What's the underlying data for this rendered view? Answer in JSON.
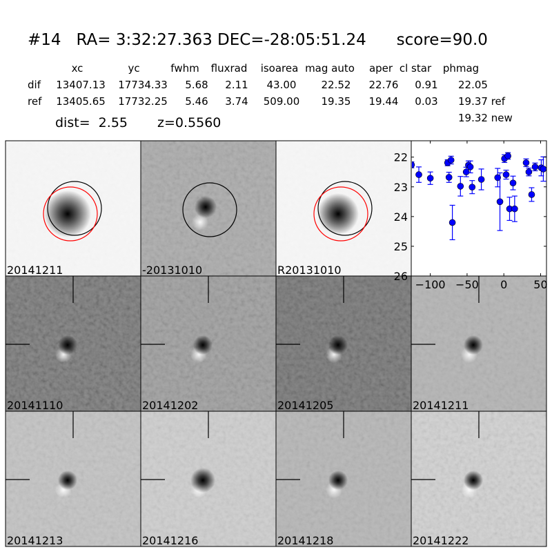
{
  "title": "#14   RA= 3:32:27.363 DEC=-28:05:51.24      score=90.0",
  "table": {
    "headers": [
      "xc",
      "yc",
      "fwhm",
      "fluxrad",
      "isoarea",
      "mag auto",
      "aper",
      "cl star",
      "phmag"
    ],
    "rows": [
      {
        "label": "dif",
        "values": [
          "13407.13",
          "17734.33",
          "5.68",
          "2.11",
          "43.00",
          "22.52",
          "22.76",
          "0.91",
          "22.05"
        ]
      },
      {
        "label": "ref",
        "values": [
          "13405.65",
          "17732.25",
          "5.46",
          "3.74",
          "509.00",
          "19.35",
          "19.44",
          "0.03",
          "19.37 ref"
        ]
      }
    ],
    "extra_phmag": "19.32 new",
    "dist": "dist=  2.55",
    "z": "z=0.5560"
  },
  "panels": [
    {
      "label": "20141211",
      "color": "#000000"
    },
    {
      "label": "-20131010",
      "color": "#000000"
    },
    {
      "label": "R20131010",
      "color": "#000000"
    },
    {
      "label": "20141110",
      "color": "#000000"
    },
    {
      "label": "20141202",
      "color": "#000000"
    },
    {
      "label": "20141205",
      "color": "#000000"
    },
    {
      "label": "20141211",
      "color": "#ff0000"
    },
    {
      "label": "20141213",
      "color": "#000000"
    },
    {
      "label": "20141216",
      "color": "#000000"
    },
    {
      "label": "20141218",
      "color": "#000000"
    },
    {
      "label": "20141222",
      "color": "#000000"
    }
  ],
  "chart_data": {
    "type": "scatter",
    "xlim": [
      -125,
      58
    ],
    "ylim": [
      26,
      21.45
    ],
    "y_inverted": true,
    "xticks": [
      "−100",
      "−50",
      "0",
      "50"
    ],
    "xtick_values": [
      -100,
      -50,
      0,
      50
    ],
    "yticks": [
      "22",
      "23",
      "24",
      "25",
      "26"
    ],
    "ytick_values": [
      22,
      23,
      24,
      25,
      26
    ],
    "marker_color": "#0000ff",
    "points": [
      {
        "x": -125.6,
        "y": 22.26,
        "err": 0.1
      },
      {
        "x": -115.6,
        "y": 22.59,
        "err": 0.26
      },
      {
        "x": -100.0,
        "y": 22.71,
        "err": 0.21
      },
      {
        "x": -76.5,
        "y": 22.19,
        "err": 0.1
      },
      {
        "x": -71.8,
        "y": 22.1,
        "err": 0.13
      },
      {
        "x": -74.6,
        "y": 22.68,
        "err": 0.17
      },
      {
        "x": -70.0,
        "y": 24.2,
        "err": 0.58
      },
      {
        "x": -59.0,
        "y": 22.98,
        "err": 0.33
      },
      {
        "x": -51.2,
        "y": 22.5,
        "err": 0.16
      },
      {
        "x": -48.1,
        "y": 22.27,
        "err": 0.14
      },
      {
        "x": -45.6,
        "y": 22.33,
        "err": 0.2
      },
      {
        "x": -43.1,
        "y": 23.01,
        "err": 0.22
      },
      {
        "x": -30.6,
        "y": 22.75,
        "err": 0.35
      },
      {
        "x": -8.4,
        "y": 22.69,
        "err": 0.31
      },
      {
        "x": -5.3,
        "y": 23.5,
        "err": 0.97
      },
      {
        "x": 0.9,
        "y": 22.05,
        "err": 0.13
      },
      {
        "x": 5.6,
        "y": 21.96,
        "err": 0.11
      },
      {
        "x": 3.1,
        "y": 22.59,
        "err": 0.15
      },
      {
        "x": 7.8,
        "y": 23.74,
        "err": 0.39
      },
      {
        "x": 14.7,
        "y": 23.74,
        "err": 0.43
      },
      {
        "x": 12.5,
        "y": 22.87,
        "err": 0.23
      },
      {
        "x": 30.3,
        "y": 22.19,
        "err": 0.13
      },
      {
        "x": 34.0,
        "y": 22.5,
        "err": 0.13
      },
      {
        "x": 37.8,
        "y": 23.26,
        "err": 0.23
      },
      {
        "x": 42.5,
        "y": 22.33,
        "err": 0.13
      },
      {
        "x": 50.9,
        "y": 22.36,
        "err": 0.27
      },
      {
        "x": 53.7,
        "y": 22.4,
        "err": 0.41
      }
    ]
  }
}
